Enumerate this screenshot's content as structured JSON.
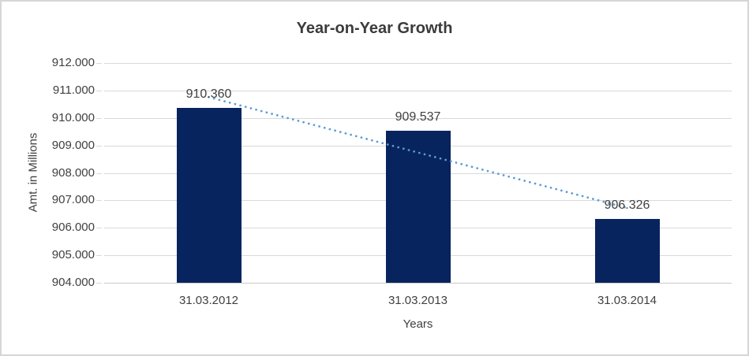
{
  "chart_data": {
    "type": "bar",
    "title": "Year-on-Year Growth",
    "xlabel": "Years",
    "ylabel": "Amt. in Millions",
    "categories": [
      "31.03.2012",
      "31.03.2013",
      "31.03.2014"
    ],
    "values": [
      910.36,
      909.537,
      906.326
    ],
    "data_labels": [
      "910.360",
      "909.537",
      "906.326"
    ],
    "ylim": [
      904,
      912
    ],
    "ytick_step": 1,
    "ytick_labels": [
      "904.000",
      "905.000",
      "906.000",
      "907.000",
      "908.000",
      "909.000",
      "910.000",
      "911.000",
      "912.000"
    ],
    "grid": true,
    "legend": "none",
    "trendline": {
      "type": "linear",
      "style": "dotted"
    },
    "colors": {
      "bar": "#08245E",
      "trendline": "#5B9BD5",
      "gridline": "#D9D9D9",
      "axis_line": "#C9C9C9",
      "text": "#404040",
      "title": "#3B3B3B",
      "frame_border": "#D6D6D6",
      "background": "#FFFFFF"
    }
  }
}
